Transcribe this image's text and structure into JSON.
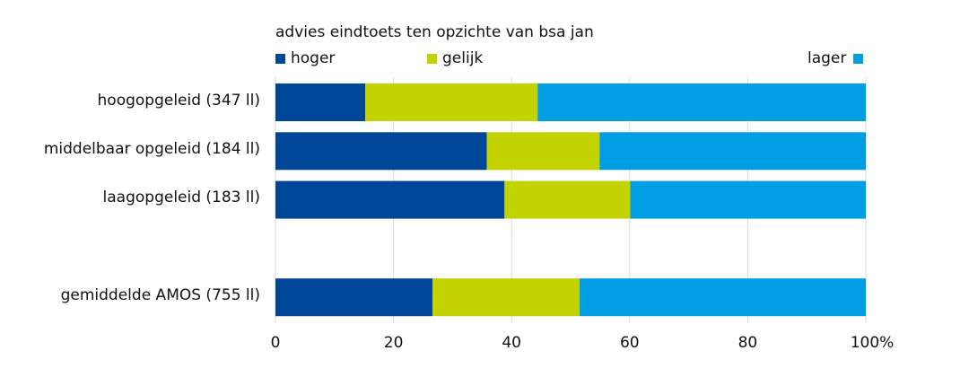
{
  "chart_data": {
    "type": "bar",
    "orientation": "horizontal",
    "stacked": true,
    "title": "advies eindtoets ten opzichte van bsa jan",
    "categories": [
      "hoogopgeleid (347 ll)",
      "middelbaar opgeleid (184 ll)",
      "laagopgeleid (183 ll)",
      "",
      "gemiddelde AMOS (755 ll)"
    ],
    "series": [
      {
        "name": "hoger",
        "color": "#00479a",
        "values": [
          15.2,
          35.8,
          38.8,
          null,
          26.6
        ]
      },
      {
        "name": "gelijk",
        "color": "#c2d300",
        "values": [
          29.2,
          19.1,
          21.3,
          null,
          24.9
        ]
      },
      {
        "name": "lager",
        "color": "#009fe3",
        "values": [
          55.6,
          45.1,
          39.9,
          null,
          48.5
        ]
      }
    ],
    "xlim": [
      0,
      100
    ],
    "xticks": [
      "0",
      "20",
      "40",
      "60",
      "80",
      "100%"
    ],
    "grid": true,
    "legend": "top"
  }
}
